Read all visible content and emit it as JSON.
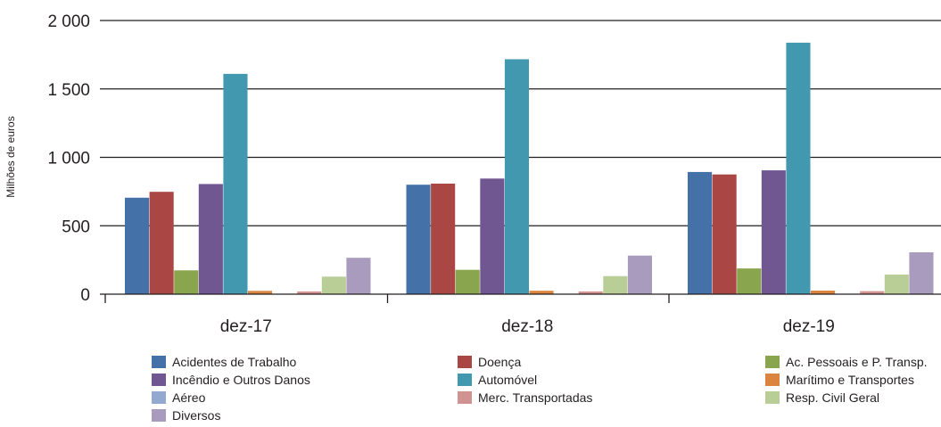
{
  "chart_data": {
    "type": "bar",
    "ylabel": "Milhões de euros",
    "ylim": [
      0,
      2000
    ],
    "yticks": [
      0,
      500,
      1000,
      1500,
      2000
    ],
    "ytick_labels": [
      "0",
      "500",
      "1 000",
      "1 500",
      "2 000"
    ],
    "grid": true,
    "legend_position": "bottom",
    "categories": [
      "dez-17",
      "dez-18",
      "dez-19"
    ],
    "series": [
      {
        "name": "Acidentes de Trabalho",
        "color": "#4472a8",
        "values": [
          705,
          800,
          893
        ]
      },
      {
        "name": "Doença",
        "color": "#aa4744",
        "values": [
          748,
          808,
          875
        ]
      },
      {
        "name": "Ac. Pessoais e P. Transp.",
        "color": "#89a54e",
        "values": [
          174,
          178,
          188
        ]
      },
      {
        "name": "Incêndio e Outros Danos",
        "color": "#715792",
        "values": [
          805,
          845,
          905
        ]
      },
      {
        "name": "Automóvel",
        "color": "#4298af",
        "values": [
          1610,
          1717,
          1838
        ]
      },
      {
        "name": "Marítimo e Transportes",
        "color": "#db843d",
        "values": [
          24,
          25,
          26
        ]
      },
      {
        "name": "Aéreo",
        "color": "#93a9cf",
        "values": [
          3,
          3,
          3
        ]
      },
      {
        "name": "Merc. Transportadas",
        "color": "#d19392",
        "values": [
          20,
          20,
          22
        ]
      },
      {
        "name": "Resp. Civil Geral",
        "color": "#b9cd96",
        "values": [
          128,
          132,
          143
        ]
      },
      {
        "name": "Diversos",
        "color": "#a99bbd",
        "values": [
          266,
          282,
          306
        ]
      }
    ]
  }
}
